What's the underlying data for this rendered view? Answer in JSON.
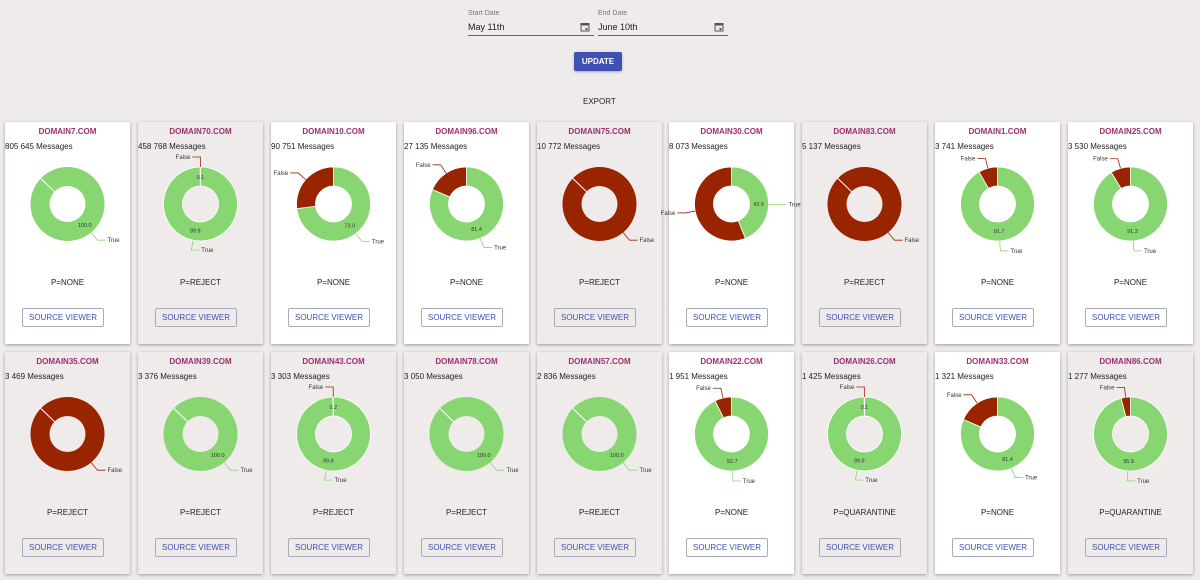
{
  "start_date": {
    "label": "Start Date",
    "value": "May 11th"
  },
  "end_date": {
    "label": "End Date",
    "value": "June 10th"
  },
  "update_label": "UPDATE",
  "export_label": "EXPORT",
  "source_viewer_label": "SOURCE VIEWER",
  "colors": {
    "true": "#88d672",
    "false": "#992400",
    "domain_text": "#9c2f6e",
    "accent": "#3f51b5"
  },
  "domains": [
    {
      "name": "DOMAIN7.COM",
      "messages": "805 645 Messages",
      "policy": "P=NONE",
      "true_pct": 100.0,
      "false_pct": 0,
      "shade": "white",
      "labels": {
        "true": "100.0"
      }
    },
    {
      "name": "DOMAIN70.COM",
      "messages": "458 768 Messages",
      "policy": "P=REJECT",
      "true_pct": 99.9,
      "false_pct": 0.1,
      "shade": "gray",
      "labels": {
        "true": "99.9",
        "false": "0.1"
      }
    },
    {
      "name": "DOMAIN10.COM",
      "messages": "90 751 Messages",
      "policy": "P=NONE",
      "true_pct": 73.0,
      "false_pct": 27.0,
      "shade": "white",
      "labels": {
        "true": "73.0"
      }
    },
    {
      "name": "DOMAIN96.COM",
      "messages": "27 135 Messages",
      "policy": "P=NONE",
      "true_pct": 81.4,
      "false_pct": 18.6,
      "shade": "white",
      "labels": {
        "true": "81.4"
      }
    },
    {
      "name": "DOMAIN75.COM",
      "messages": "10 772 Messages",
      "policy": "P=REJECT",
      "true_pct": 0,
      "false_pct": 100.0,
      "shade": "gray",
      "labels": {}
    },
    {
      "name": "DOMAIN30.COM",
      "messages": "8 073 Messages",
      "policy": "P=NONE",
      "true_pct": 43.9,
      "false_pct": 56.1,
      "shade": "white",
      "labels": {
        "true": "43.9"
      }
    },
    {
      "name": "DOMAIN83.COM",
      "messages": "5 137 Messages",
      "policy": "P=REJECT",
      "true_pct": 0,
      "false_pct": 100.0,
      "shade": "gray",
      "labels": {}
    },
    {
      "name": "DOMAIN1.COM",
      "messages": "3 741 Messages",
      "policy": "P=NONE",
      "true_pct": 91.7,
      "false_pct": 8.3,
      "shade": "white",
      "labels": {
        "true": "91.7"
      }
    },
    {
      "name": "DOMAIN25.COM",
      "messages": "3 530 Messages",
      "policy": "P=NONE",
      "true_pct": 91.3,
      "false_pct": 8.7,
      "shade": "white",
      "labels": {
        "true": "91.3"
      }
    },
    {
      "name": "DOMAIN35.COM",
      "messages": "3 469 Messages",
      "policy": "P=REJECT",
      "true_pct": 0,
      "false_pct": 100.0,
      "shade": "gray",
      "labels": {}
    },
    {
      "name": "DOMAIN39.COM",
      "messages": "3 376 Messages",
      "policy": "P=REJECT",
      "true_pct": 100.0,
      "false_pct": 0,
      "shade": "gray",
      "labels": {
        "true": "100.0"
      }
    },
    {
      "name": "DOMAIN43.COM",
      "messages": "3 303 Messages",
      "policy": "P=REJECT",
      "true_pct": 99.8,
      "false_pct": 0.2,
      "shade": "gray",
      "labels": {
        "true": "99.8",
        "false": "0.2"
      }
    },
    {
      "name": "DOMAIN78.COM",
      "messages": "3 050 Messages",
      "policy": "P=REJECT",
      "true_pct": 100.0,
      "false_pct": 0,
      "shade": "gray",
      "labels": {
        "true": "100.0"
      }
    },
    {
      "name": "DOMAIN57.COM",
      "messages": "2 836 Messages",
      "policy": "P=REJECT",
      "true_pct": 100.0,
      "false_pct": 0,
      "shade": "gray",
      "labels": {
        "true": "100.0"
      }
    },
    {
      "name": "DOMAIN22.COM",
      "messages": "1 951 Messages",
      "policy": "P=NONE",
      "true_pct": 92.7,
      "false_pct": 7.3,
      "shade": "white",
      "labels": {
        "true": "92.7"
      }
    },
    {
      "name": "DOMAIN26.COM",
      "messages": "1 425 Messages",
      "policy": "P=QUARANTINE",
      "true_pct": 99.9,
      "false_pct": 0.1,
      "shade": "gray",
      "labels": {
        "true": "99.9",
        "false": "0.1"
      }
    },
    {
      "name": "DOMAIN33.COM",
      "messages": "1 321 Messages",
      "policy": "P=NONE",
      "true_pct": 81.4,
      "false_pct": 18.6,
      "shade": "white",
      "labels": {
        "true": "81.4"
      }
    },
    {
      "name": "DOMAIN86.COM",
      "messages": "1 277 Messages",
      "policy": "P=QUARANTINE",
      "true_pct": 95.9,
      "false_pct": 4.1,
      "shade": "gray",
      "labels": {
        "true": "95.9"
      }
    }
  ],
  "legend_words": {
    "true": "True",
    "false": "False"
  }
}
